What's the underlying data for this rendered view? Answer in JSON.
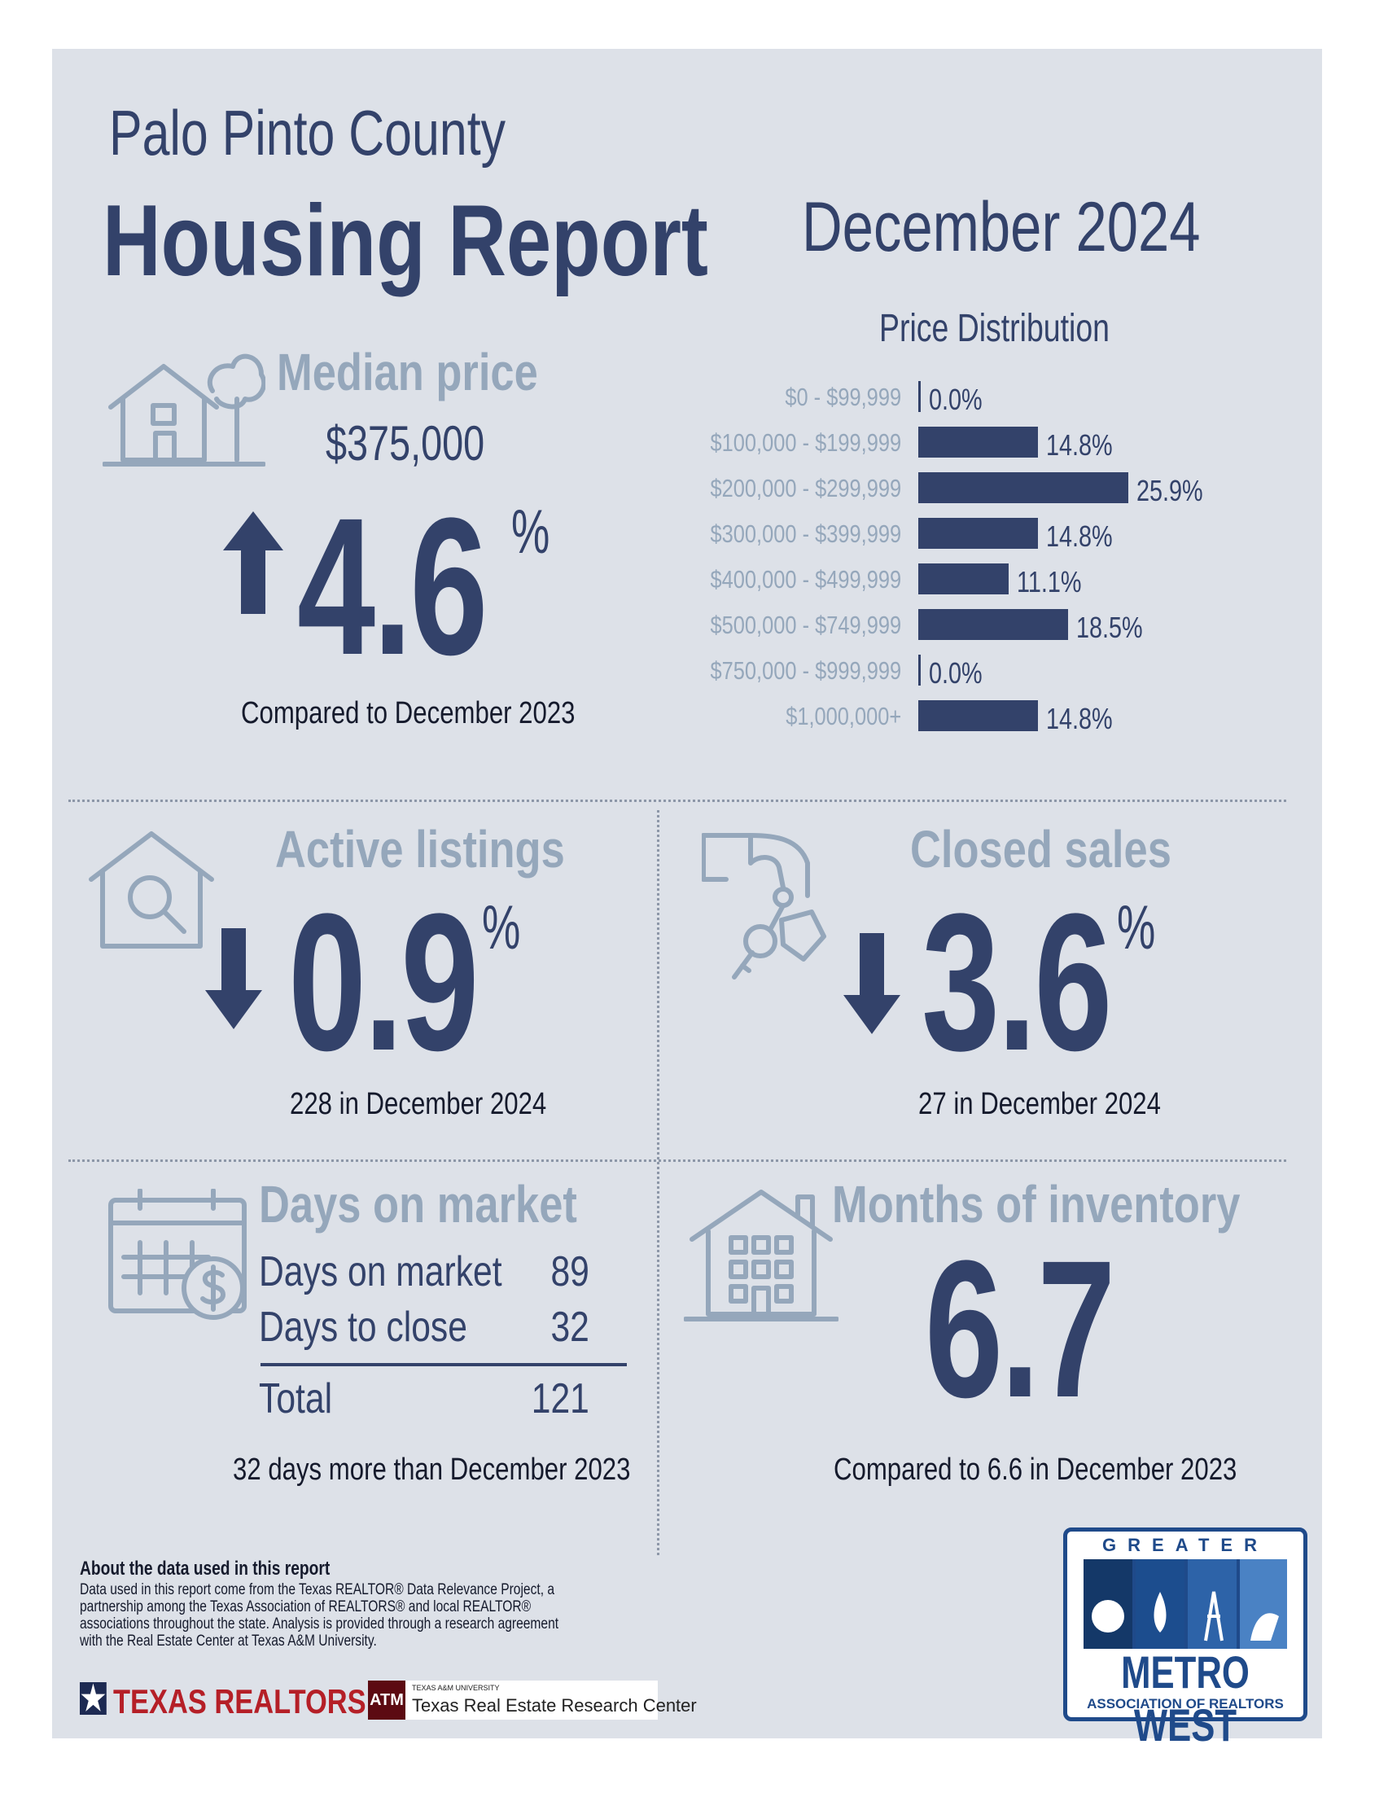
{
  "header": {
    "county": "Palo Pinto County",
    "title": "Housing Report",
    "month": "December 2024"
  },
  "median_price": {
    "title": "Median price",
    "value": "$375,000",
    "change": "4.6",
    "unit": "%",
    "direction": "up",
    "caption": "Compared to December 2023"
  },
  "chart_data": {
    "type": "bar",
    "title": "Price Distribution",
    "orientation": "horizontal",
    "categories": [
      "$0 - $99,999",
      "$100,000 - $199,999",
      "$200,000 - $299,999",
      "$300,000 - $399,999",
      "$400,000 - $499,999",
      "$500,000 - $749,999",
      "$750,000 - $999,999",
      "$1,000,000+"
    ],
    "values": [
      0.0,
      14.8,
      25.9,
      14.8,
      11.1,
      18.5,
      0.0,
      14.8
    ],
    "labels": [
      "0.0%",
      "14.8%",
      "25.9%",
      "14.8%",
      "11.1%",
      "18.5%",
      "0.0%",
      "14.8%"
    ],
    "unit": "%",
    "xlim": [
      0,
      25.9
    ]
  },
  "active_listings": {
    "title": "Active listings",
    "change": "0.9",
    "unit": "%",
    "direction": "down",
    "caption": "228 in December 2024"
  },
  "closed_sales": {
    "title": "Closed sales",
    "change": "3.6",
    "unit": "%",
    "direction": "down",
    "caption": "27 in December 2024"
  },
  "days_on_market": {
    "title": "Days on market",
    "rows": [
      {
        "label": "Days on market",
        "value": "89"
      },
      {
        "label": "Days to close",
        "value": "32"
      }
    ],
    "total_label": "Total",
    "total_value": "121",
    "caption": "32 days more than December 2023"
  },
  "months_inventory": {
    "title": "Months of inventory",
    "value": "6.7",
    "caption": "Compared to 6.6 in December 2023"
  },
  "about": {
    "title": "About the data used in this report",
    "text": "Data used in this report come from the Texas REALTOR® Data Relevance Project, a partnership among the Texas Association of REALTORS® and local REALTOR® associations throughout the state. Analysis is provided through a research agreement with the Real Estate Center at Texas A&M University."
  },
  "logos": {
    "texas_realtors": "TEXAS REALTORS",
    "tamu_small": "TEXAS A&M UNIVERSITY",
    "tamu_name": "Texas Real Estate Research Center",
    "metro_greater": "GREATER",
    "metro_name": "METRO WEST",
    "metro_sub": "ASSOCIATION OF REALTORS"
  },
  "colors": {
    "navy": "#33426a",
    "muted": "#95a7bb",
    "panel": "#dde1e8"
  }
}
